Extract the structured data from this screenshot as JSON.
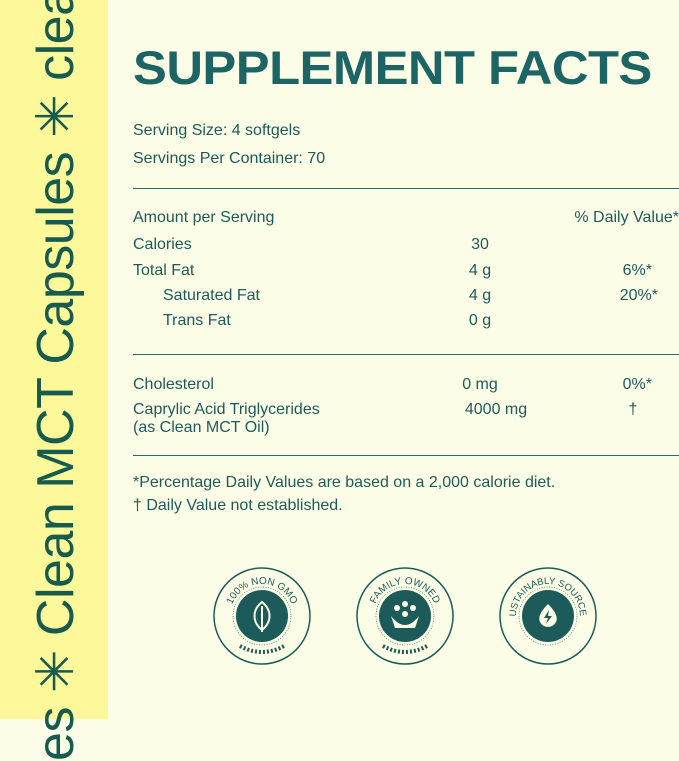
{
  "sidebar": {
    "text": "es ✳ Clean MCT Capsules ✳ clean"
  },
  "title": "SUPPLEMENT FACTS",
  "serving_size": "Serving Size: 4 softgels",
  "servings_per_container": "Servings Per Container: 70",
  "header": {
    "amount": "Amount per Serving",
    "dv": "% Daily Value*"
  },
  "rows": [
    {
      "name": "Calories",
      "amount": "30",
      "dv": ""
    },
    {
      "name": "Total Fat",
      "amount": "4 g",
      "dv": "6%*"
    },
    {
      "name": "Saturated Fat",
      "amount": "4 g",
      "dv": "20%*"
    },
    {
      "name": "Trans Fat",
      "amount": "0 g",
      "dv": ""
    },
    {
      "name": "Cholesterol",
      "amount": "0 mg",
      "dv": "0%*"
    },
    {
      "name": "Caprylic Acid Triglycerides",
      "name2": "(as Clean MCT Oil)",
      "amount": "4000 mg",
      "dv": "†"
    }
  ],
  "footnotes": [
    "*Percentage Daily Values are based on a 2,000 calorie diet.",
    "† Daily Value not established."
  ],
  "badges": [
    {
      "text": "100% NON GMO",
      "icon": "leaf-icon"
    },
    {
      "text": "FAMILY OWNED",
      "icon": "family-icon"
    },
    {
      "text": "SUSTAINABLY SOURCED",
      "icon": "energy-drop-icon"
    }
  ],
  "colors": {
    "teal": "#1d5b5a",
    "sidebar": "#fdf99b",
    "background": "#fcfde6"
  }
}
